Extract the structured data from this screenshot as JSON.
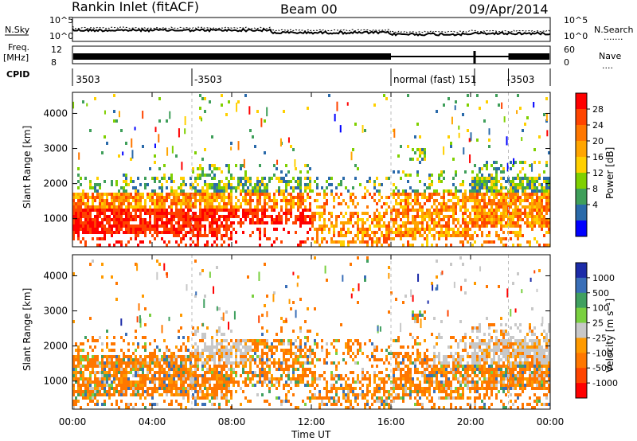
{
  "header": {
    "station": "Rankin Inlet (fitACF)",
    "beam": "Beam 00",
    "date": "09/Apr/2014"
  },
  "top_panels": {
    "left_labels": {
      "nsky": "N.Sky",
      "freq_line1": "Freq.",
      "freq_line2": "[MHz]",
      "cpid": "CPID"
    },
    "right_labels": {
      "nsearch": "N.Search",
      "nave": "Nave",
      "dots_short": "....",
      "dots_long": "......."
    },
    "noise_ticks_left": [
      "10^5",
      "10^0"
    ],
    "noise_ticks_right": [
      "10^5",
      "10^0"
    ],
    "freq_ticks": [
      "12",
      "8"
    ],
    "nave_ticks": [
      "60",
      "0"
    ],
    "cpid_labels": [
      {
        "text": "3503",
        "t": 0.05
      },
      {
        "text": "-3503",
        "t": 6.0
      },
      {
        "text": "normal (fast) 151",
        "t": 16.0
      },
      {
        "text": "-3503",
        "t": 21.7
      }
    ],
    "cpid_dividers": [
      6.0,
      16.0,
      20.2,
      21.9
    ]
  },
  "x_axis": {
    "label": "Time UT",
    "ticks": [
      "00:00",
      "04:00",
      "08:00",
      "12:00",
      "16:00",
      "20:00",
      "00:00"
    ],
    "range": [
      0,
      24
    ]
  },
  "chart_data": [
    {
      "type": "heatmap",
      "ylabel": "Slant Range [km]",
      "yticks": [
        "1000",
        "2000",
        "3000",
        "4000"
      ],
      "ylim": [
        200,
        4600
      ],
      "colorbar": {
        "label": "Power [dB]",
        "ticks": [
          "28",
          "24",
          "20",
          "16",
          "12",
          "8",
          "4"
        ],
        "colors": [
          "#ff0000",
          "#ff4400",
          "#ff7700",
          "#ffa500",
          "#ffd000",
          "#7fd000",
          "#3f9f5a",
          "#2a6aaa",
          "#0000ff"
        ]
      }
    },
    {
      "type": "heatmap",
      "ylabel": "Slant Range [km]",
      "yticks": [
        "1000",
        "2000",
        "3000",
        "4000"
      ],
      "ylim": [
        200,
        4600
      ],
      "colorbar": {
        "label": "Velocity [m s⁻¹]",
        "ticks": [
          "1000",
          "500",
          "100",
          "25",
          "-25",
          "-100",
          "-500",
          "-1000"
        ],
        "colors": [
          "#1c2ba8",
          "#3a6fb8",
          "#40a060",
          "#7ad040",
          "#c8c8c8",
          "#ff9a00",
          "#ff7700",
          "#ff4400",
          "#ff0000"
        ]
      }
    }
  ],
  "colors": {
    "frame": "#000000",
    "gray_scatter": "#c8c8c8"
  }
}
